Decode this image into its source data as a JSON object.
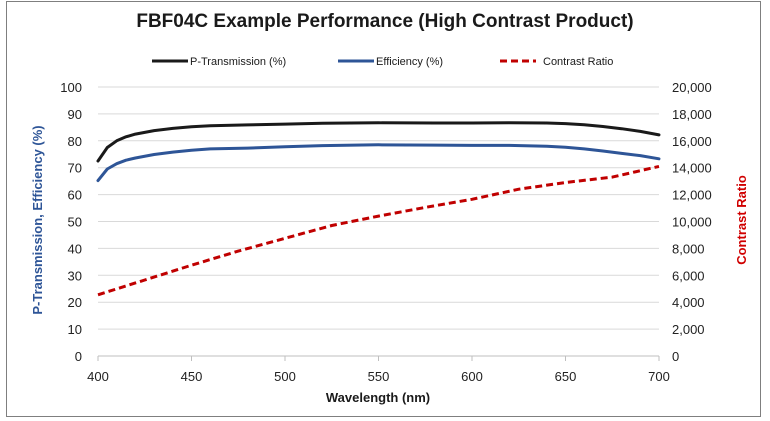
{
  "chart_data": {
    "type": "line",
    "title": "FBF04C Example Performance (High Contrast Product)",
    "xlabel": "Wavelength (nm)",
    "ylabel": "P-Transmission, Efficiency (%)",
    "y2label": "Contrast Ratio",
    "xlim": [
      400,
      700
    ],
    "ylim": [
      0,
      100
    ],
    "y2lim": [
      0,
      20000
    ],
    "x_ticks": [
      "400",
      "450",
      "500",
      "550",
      "600",
      "650",
      "700"
    ],
    "y_ticks": [
      "0",
      "10",
      "20",
      "30",
      "40",
      "50",
      "60",
      "70",
      "80",
      "90",
      "100"
    ],
    "y2_ticks": [
      "0",
      "2,000",
      "4,000",
      "6,000",
      "8,000",
      "10,000",
      "12,000",
      "14,000",
      "16,000",
      "18,000",
      "20,000"
    ],
    "legend_position": "top",
    "grid": "horizontal",
    "series": [
      {
        "name": "P-Transmission (%)",
        "axis": "left",
        "color": "#1a1a1a",
        "style": "solid",
        "x": [
          400,
          405,
          410,
          415,
          420,
          430,
          440,
          450,
          460,
          480,
          500,
          520,
          550,
          580,
          600,
          620,
          640,
          650,
          660,
          670,
          680,
          690,
          700
        ],
        "y": [
          72.5,
          77.5,
          80.0,
          81.5,
          82.5,
          83.8,
          84.6,
          85.2,
          85.6,
          85.9,
          86.2,
          86.5,
          86.7,
          86.6,
          86.6,
          86.7,
          86.6,
          86.4,
          86.0,
          85.3,
          84.5,
          83.5,
          82.2
        ]
      },
      {
        "name": "Efficiency (%)",
        "axis": "left",
        "color": "#2e5597",
        "style": "solid",
        "x": [
          400,
          405,
          410,
          415,
          420,
          430,
          440,
          450,
          460,
          480,
          500,
          520,
          550,
          580,
          600,
          620,
          640,
          650,
          660,
          670,
          680,
          690,
          700
        ],
        "y": [
          65.2,
          69.5,
          71.5,
          72.8,
          73.6,
          74.9,
          75.8,
          76.5,
          77.0,
          77.3,
          77.8,
          78.2,
          78.5,
          78.4,
          78.3,
          78.3,
          78.0,
          77.6,
          77.0,
          76.2,
          75.3,
          74.5,
          73.3
        ]
      },
      {
        "name": "Contrast Ratio",
        "axis": "right",
        "color": "#c00000",
        "style": "dashed",
        "x": [
          400,
          425,
          450,
          475,
          500,
          525,
          550,
          575,
          600,
          625,
          650,
          675,
          700
        ],
        "y": [
          4550,
          5650,
          6750,
          7800,
          8750,
          9700,
          10400,
          11050,
          11650,
          12400,
          12900,
          13300,
          14100
        ]
      }
    ]
  }
}
